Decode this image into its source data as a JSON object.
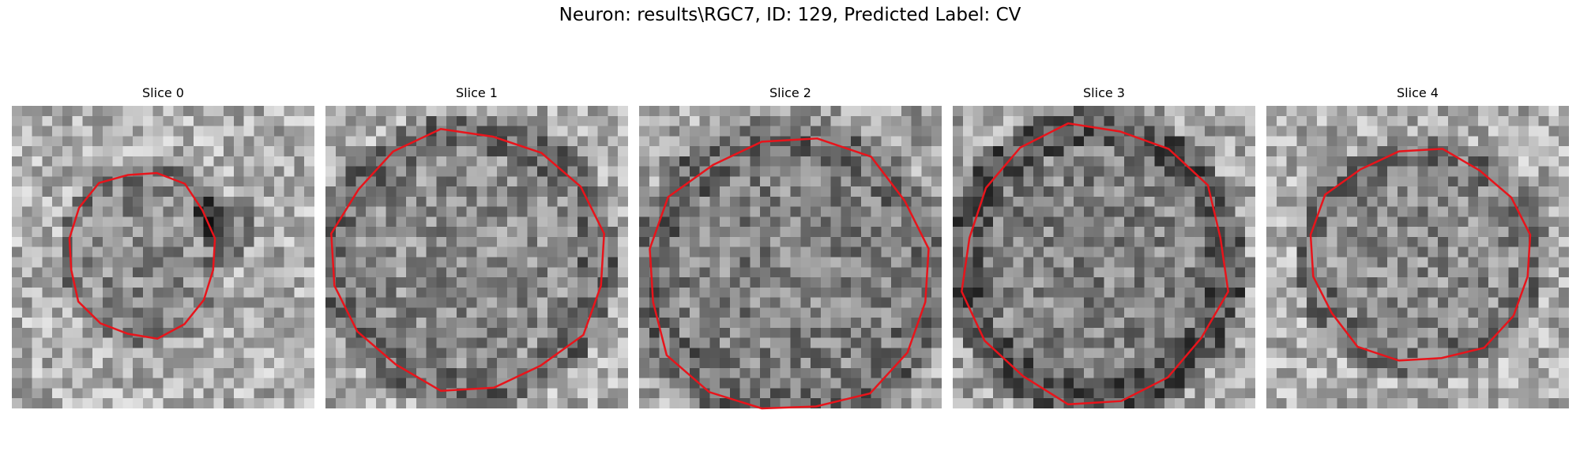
{
  "figure": {
    "title": "Neuron: results\\RGC7, ID: 129, Predicted Label: CV",
    "contour_color": "#e8141b"
  },
  "panels": [
    {
      "title": "Slice 0",
      "image": "grayscale-em-crop",
      "contour": "neuron-outline"
    },
    {
      "title": "Slice 1",
      "image": "grayscale-em-crop",
      "contour": "neuron-outline"
    },
    {
      "title": "Slice 2",
      "image": "grayscale-em-crop",
      "contour": "neuron-outline"
    },
    {
      "title": "Slice 3",
      "image": "grayscale-em-crop",
      "contour": "neuron-outline"
    },
    {
      "title": "Slice 4",
      "image": "grayscale-em-crop",
      "contour": "neuron-outline"
    }
  ]
}
